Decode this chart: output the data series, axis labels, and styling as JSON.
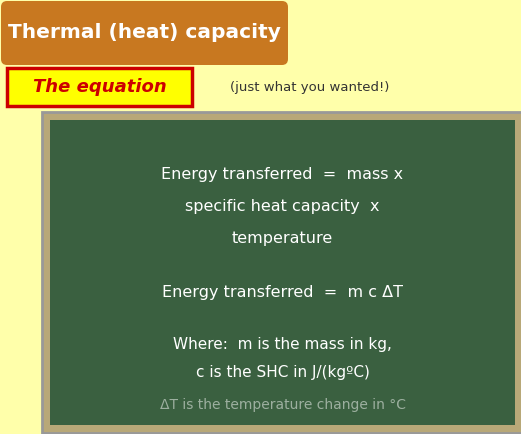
{
  "bg_color": "#FFFFAA",
  "title_text": "Thermal (heat) capacity",
  "title_bg": "#C87820",
  "title_fg": "#FFFFFF",
  "equation_label": "The equation",
  "equation_label_fg": "#CC0000",
  "equation_label_bg": "#FFFF00",
  "equation_label_border": "#CC0000",
  "subtitle_text": "(just what you wanted!)",
  "subtitle_fg": "#333333",
  "board_bg": "#3A6040",
  "board_frame_color": "#B8A878",
  "board_text_color": "#FFFFFF",
  "line1": "Energy transferred  =  mass x",
  "line2": "specific heat capacity  x",
  "line3": "temperature",
  "line4": "Energy transferred  =  m c ΔT",
  "line5": "Where:  m is the mass in kg,",
  "line6": "c is the SHC in J/(kgºC)",
  "line7": "ΔT is the temperature change in °C"
}
